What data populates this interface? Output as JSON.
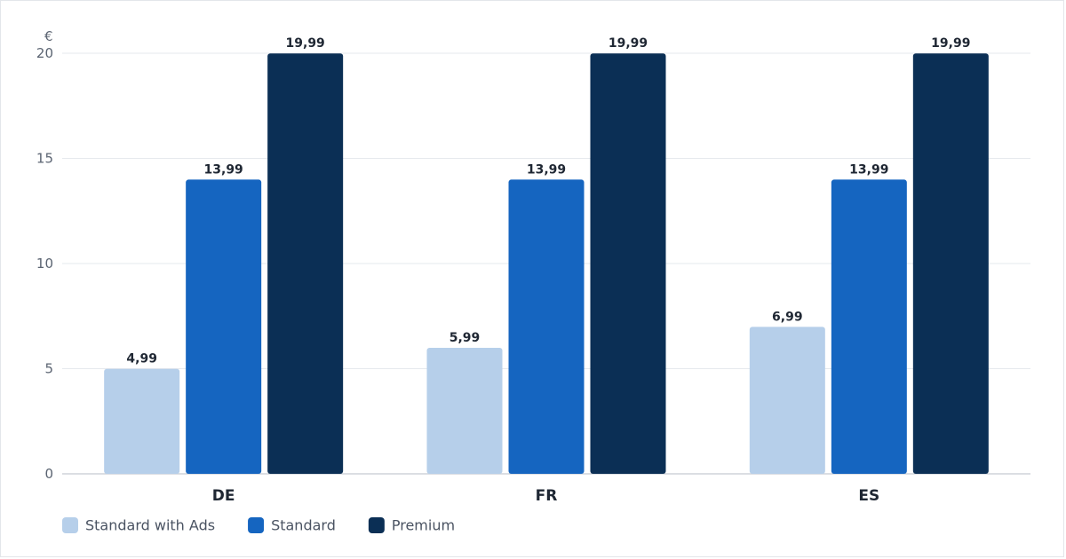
{
  "chart_data": {
    "type": "bar",
    "ylabel": "€",
    "ylim": [
      0,
      20
    ],
    "yticks": [
      0,
      5,
      10,
      15,
      20
    ],
    "grid": true,
    "legend_position": "bottom-left",
    "categories": [
      "DE",
      "FR",
      "ES"
    ],
    "series": [
      {
        "name": "Standard with Ads",
        "color": "#b6cfea",
        "values": [
          4.99,
          5.99,
          6.99
        ],
        "labels": [
          "4,99",
          "5,99",
          "6,99"
        ]
      },
      {
        "name": "Standard",
        "color": "#1565c0",
        "values": [
          13.99,
          13.99,
          13.99
        ],
        "labels": [
          "13,99",
          "13,99",
          "13,99"
        ]
      },
      {
        "name": "Premium",
        "color": "#0b2f55",
        "values": [
          19.99,
          19.99,
          19.99
        ],
        "labels": [
          "19,99",
          "19,99",
          "19,99"
        ]
      }
    ]
  }
}
